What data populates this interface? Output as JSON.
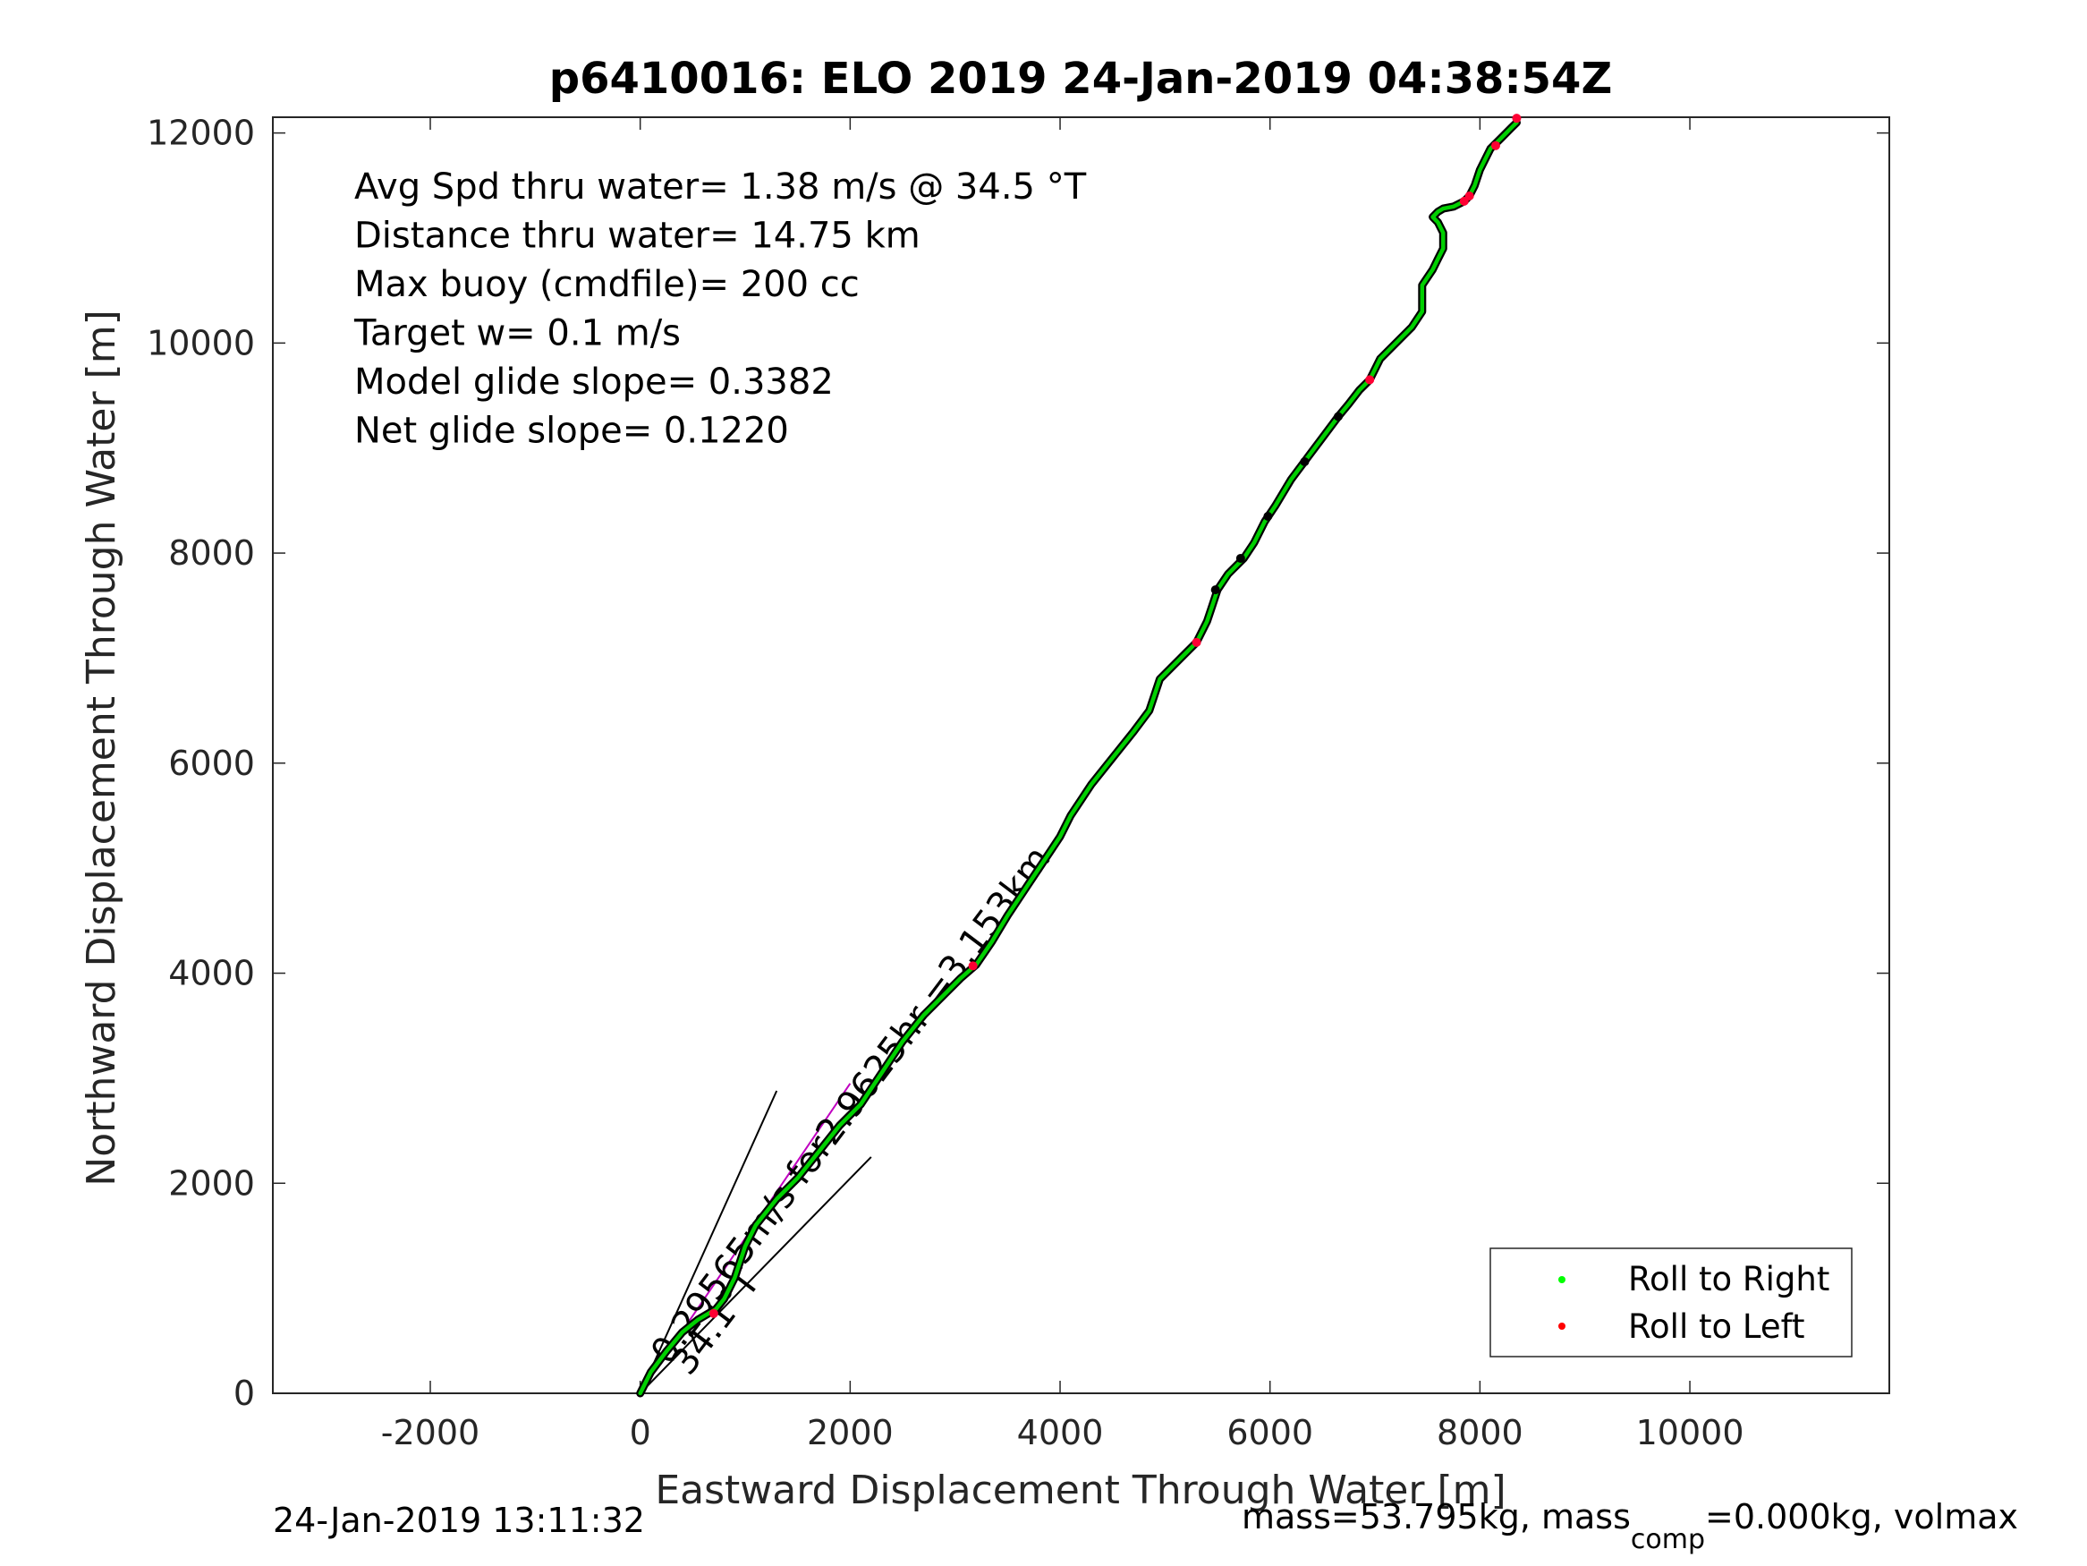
{
  "chart_data": {
    "type": "line",
    "title": "p6410016: ELO 2019 24-Jan-2019 04:38:54Z",
    "xlabel": "Eastward Displacement Through Water [m]",
    "ylabel": "Northward Displacement Through Water [m]",
    "xlim": [
      -3500,
      11900
    ],
    "ylim": [
      0,
      12150
    ],
    "xticks": [
      -2000,
      0,
      2000,
      4000,
      6000,
      8000,
      10000
    ],
    "yticks": [
      0,
      2000,
      4000,
      6000,
      8000,
      10000,
      12000
    ],
    "grid": true,
    "info_lines": [
      "Avg Spd thru water=  1.38 m/s @  34.5 °T",
      "Distance thru water= 14.75 km",
      "Max buoy (cmdfile)= 200 cc",
      "Target w= 0.1 m/s",
      "Model glide slope= 0.3382",
      "Net glide slope= 0.1220"
    ],
    "legend": {
      "placement": "bottom-right",
      "entries": [
        {
          "label": "Roll to Right",
          "color": "#00ff00"
        },
        {
          "label": "Roll to Left",
          "color": "#ff0000"
        }
      ]
    },
    "track": {
      "color": "#00d000",
      "x": [
        0,
        100,
        250,
        400,
        550,
        650,
        720,
        800,
        900,
        1000,
        1100,
        1300,
        1500,
        1700,
        1900,
        2100,
        2300,
        2500,
        2700,
        2900,
        3050,
        3200,
        3350,
        3500,
        3700,
        3900,
        4000,
        4100,
        4300,
        4500,
        4700,
        4850,
        4950,
        5050,
        5200,
        5300,
        5400,
        5450,
        5500,
        5600,
        5750,
        5850,
        5950,
        6050,
        6200,
        6350,
        6500,
        6650,
        6750,
        6850,
        6950,
        7000,
        7050,
        7200,
        7350,
        7450,
        7450,
        7550,
        7600,
        7650,
        7650,
        7600,
        7550,
        7600,
        7650,
        7750,
        7850,
        7900,
        7950,
        8000,
        8050,
        8100,
        8200,
        8300,
        8350
      ],
      "y": [
        0,
        200,
        400,
        580,
        700,
        760,
        800,
        900,
        1100,
        1400,
        1600,
        1850,
        2050,
        2300,
        2550,
        2750,
        3050,
        3350,
        3600,
        3800,
        3950,
        4080,
        4300,
        4550,
        4850,
        5150,
        5300,
        5500,
        5800,
        6050,
        6300,
        6500,
        6800,
        6900,
        7050,
        7150,
        7350,
        7500,
        7650,
        7800,
        7950,
        8100,
        8300,
        8450,
        8700,
        8900,
        9100,
        9300,
        9420,
        9550,
        9650,
        9750,
        9850,
        10000,
        10150,
        10300,
        10550,
        10700,
        10800,
        10900,
        11050,
        11150,
        11200,
        11250,
        11280,
        11300,
        11350,
        11400,
        11500,
        11650,
        11750,
        11850,
        11950,
        12050,
        12100
      ]
    },
    "roll_left_points": {
      "x": [
        700,
        3170,
        5300,
        6950,
        7850,
        7900,
        8150,
        8350
      ],
      "y": [
        760,
        4070,
        7150,
        9650,
        11350,
        11400,
        11880,
        12140
      ]
    },
    "black_marks": {
      "x": [
        5480,
        5720,
        5980,
        6330,
        6650
      ],
      "y": [
        7650,
        7950,
        8350,
        8870,
        9300
      ]
    },
    "current_vector": {
      "label_parts": [
        "0.295",
        "65",
        "m/s",
        "for",
        "2.9625",
        "hr",
        "=3.153km"
      ],
      "label": "0.29565m/s for2.9625hr =3.153km",
      "direction_label": "34.1°T",
      "line_end": [
        2000,
        2950
      ],
      "wedge_upper_end": [
        1300,
        2880
      ],
      "wedge_lower_end": [
        2200,
        2250
      ]
    },
    "footer_left": "24-Jan-2019 13:11:32",
    "footer_right": {
      "prefix": "mass=53.795kg, mass",
      "subscript": "comp",
      "suffix": "=0.000kg, volmax"
    }
  }
}
